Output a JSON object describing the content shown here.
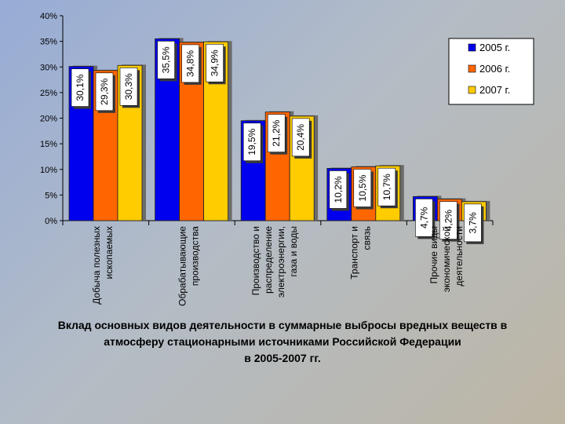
{
  "chart_data": {
    "type": "bar",
    "categories": [
      [
        "Добыча полезных",
        "ископаемых"
      ],
      [
        "Обрабатывающие",
        "производства"
      ],
      [
        "Производство и",
        "распределение",
        "электроэнергии,",
        "газа и воды"
      ],
      [
        "Транспорт и",
        "связь"
      ],
      [
        "Прочие виды",
        "экономической",
        "деятельности"
      ]
    ],
    "series": [
      {
        "name": "2005 г.",
        "color": "#0000ee",
        "values": [
          30.1,
          35.5,
          19.5,
          10.2,
          4.7
        ],
        "labels": [
          "30,1%",
          "35,5%",
          "19,5%",
          "10,2%",
          "4,7%"
        ]
      },
      {
        "name": "2006 г.",
        "color": "#ff6600",
        "values": [
          29.3,
          34.8,
          21.2,
          10.5,
          4.2
        ],
        "labels": [
          "29,3%",
          "34,8%",
          "21,2%",
          "10,5%",
          "4,2%"
        ]
      },
      {
        "name": "2007 г.",
        "color": "#ffcc00",
        "values": [
          30.3,
          34.9,
          20.4,
          10.7,
          3.7
        ],
        "labels": [
          "30,3%",
          "34,9%",
          "20,4%",
          "10,7%",
          "3,7%"
        ]
      }
    ],
    "y_ticks": [
      {
        "value": 0,
        "label": "0%"
      },
      {
        "value": 5,
        "label": "5%"
      },
      {
        "value": 10,
        "label": "10%"
      },
      {
        "value": 15,
        "label": "15%"
      },
      {
        "value": 20,
        "label": "20%"
      },
      {
        "value": 25,
        "label": "25%"
      },
      {
        "value": 30,
        "label": "30%"
      },
      {
        "value": 35,
        "label": "35%"
      },
      {
        "value": 40,
        "label": "40%"
      }
    ],
    "ylim": [
      0,
      40
    ],
    "legend_position": "top-right",
    "grid": false
  },
  "caption": {
    "line1": "Вклад основных видов деятельности в суммарные выбросы вредных веществ в",
    "line2": "атмосферу стационарными источниками Российской Федерации",
    "line3": "в 2005-2007 гг."
  }
}
